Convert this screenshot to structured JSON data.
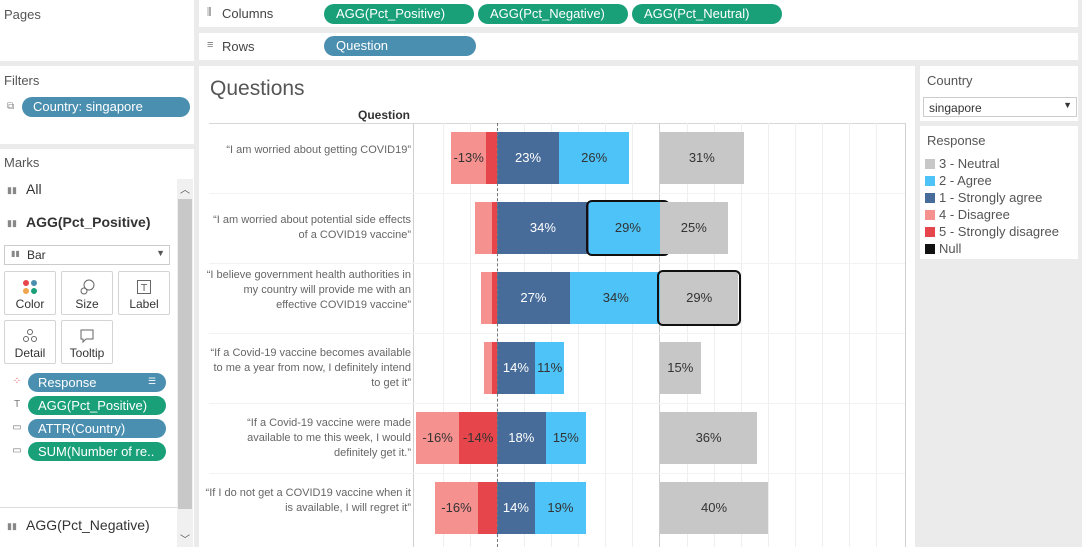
{
  "pages": {
    "title": "Pages"
  },
  "shelves": {
    "columns_label": "Columns",
    "rows_label": "Rows",
    "columns": [
      "AGG(Pct_Positive)",
      "AGG(Pct_Negative)",
      "AGG(Pct_Neutral)"
    ],
    "rows": [
      "Question"
    ]
  },
  "filters": {
    "title": "Filters",
    "items": [
      "Country: singapore"
    ]
  },
  "marks": {
    "title": "Marks",
    "all_label": "All",
    "active_label": "AGG(Pct_Positive)",
    "mark_type": "Bar",
    "cards": [
      "Color",
      "Size",
      "Label",
      "Detail",
      "Tooltip"
    ],
    "fields": [
      {
        "label": "Response",
        "kind": "color",
        "color": "#4a8fb0"
      },
      {
        "label": "AGG(Pct_Positive)",
        "kind": "label",
        "color": "#1aa079"
      },
      {
        "label": "ATTR(Country)",
        "kind": "tooltip",
        "color": "#4a8fb0"
      },
      {
        "label": "SUM(Number of re..",
        "kind": "tooltip",
        "color": "#1aa079"
      }
    ],
    "next_label": "AGG(Pct_Negative)"
  },
  "viz": {
    "title": "Questions",
    "header": "Question"
  },
  "country_filter": {
    "title": "Country",
    "value": "singapore"
  },
  "legend": {
    "title": "Response",
    "items": [
      {
        "label": "3 - Neutral",
        "color": "#c7c7c7"
      },
      {
        "label": "2 - Agree",
        "color": "#4dc3f7"
      },
      {
        "label": "1 - Strongly agree",
        "color": "#486c99"
      },
      {
        "label": "4 - Disagree",
        "color": "#f5918f"
      },
      {
        "label": "5 - Strongly disagree",
        "color": "#e6454b"
      },
      {
        "label": "Null",
        "color": "#111111"
      }
    ]
  },
  "chart_data": {
    "type": "bar",
    "categories": [
      "“I am worried about getting COVID19”",
      "“I am worried about potential side effects of a COVID19 vaccine”",
      "“I believe government health authorities in my country will provide me with an effective COVID19 vaccine”",
      "“If a Covid-19 vaccine becomes available to me a year from now, I definitely intend to get it”",
      "“If a Covid-19 vaccine were made available to me this week, I would definitely get it.”",
      "“If I do not get a COVID19 vaccine when it is available, I will regret it”"
    ],
    "series": [
      {
        "name": "5 - Strongly disagree",
        "values": [
          -4,
          -2,
          -2,
          -2,
          -14,
          -7
        ]
      },
      {
        "name": "4 - Disagree",
        "values": [
          -13,
          -6,
          -4,
          -3,
          -16,
          -16
        ]
      },
      {
        "name": "1 - Strongly agree",
        "values": [
          23,
          34,
          27,
          14,
          18,
          14
        ]
      },
      {
        "name": "2 - Agree",
        "values": [
          26,
          29,
          34,
          11,
          15,
          19
        ]
      },
      {
        "name": "3 - Neutral",
        "values": [
          31,
          25,
          29,
          15,
          36,
          40
        ]
      }
    ],
    "labels": {
      "5 - Strongly disagree": [
        "",
        "",
        "",
        "",
        "-14%",
        ""
      ],
      "4 - Disagree": [
        "-13%",
        "",
        "",
        "",
        "-16%",
        "-16%"
      ],
      "1 - Strongly agree": [
        "23%",
        "34%",
        "27%",
        "14%",
        "18%",
        "14%"
      ],
      "2 - Agree": [
        "26%",
        "29%",
        "34%",
        "11%",
        "15%",
        "19%"
      ],
      "3 - Neutral": [
        "31%",
        "25%",
        "29%",
        "15%",
        "36%",
        "40%"
      ]
    },
    "selected": [
      {
        "series": "2 - Agree",
        "row": 1
      },
      {
        "series": "3 - Neutral",
        "row": 2
      }
    ],
    "xlabel": "",
    "ylabel": "Question",
    "grid": true
  }
}
